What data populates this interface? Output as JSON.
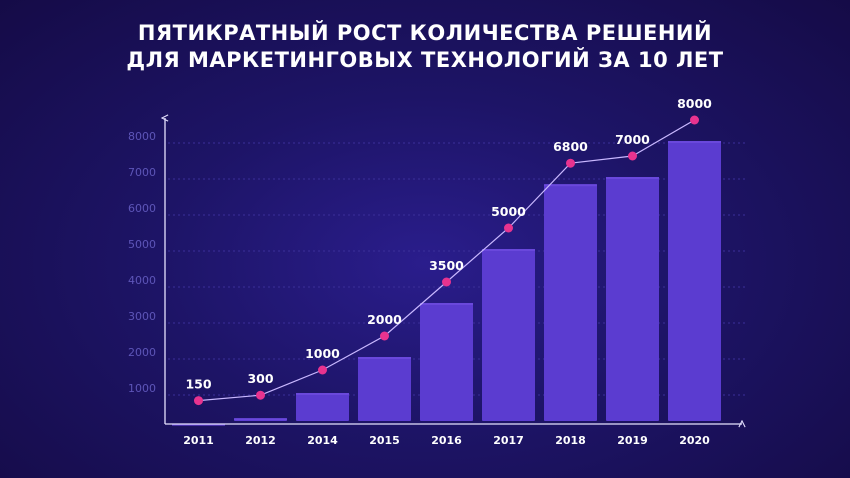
{
  "title": {
    "line1": "ПЯТИКРАТНЫЙ РОСТ КОЛИЧЕСТВА РЕШЕНИЙ",
    "line2": "ДЛЯ МАРКЕТИНГОВЫХ ТЕХНОЛОГИЙ ЗА 10 ЛЕТ"
  },
  "colors": {
    "bar": "#5b3cd0",
    "bar_light": "#6a48dc",
    "line": "#c9b8ff",
    "marker": "#e8338f",
    "axis": "#e6e2ff",
    "grid": "#3b2f9a"
  },
  "chart_data": {
    "type": "bar",
    "title": "ПЯТИКРАТНЫЙ РОСТ КОЛИЧЕСТВА РЕШЕНИЙ ДЛЯ МАРКЕТИНГОВЫХ ТЕХНОЛОГИЙ ЗА 10 ЛЕТ",
    "categories": [
      "2011",
      "2012",
      "2014",
      "2015",
      "2016",
      "2017",
      "2018",
      "2019",
      "2020"
    ],
    "values": [
      150,
      300,
      1000,
      2000,
      3500,
      5000,
      6800,
      7000,
      8000
    ],
    "data_labels": [
      "150",
      "300",
      "1000",
      "2000",
      "3500",
      "5000",
      "6800",
      "7000",
      "8000"
    ],
    "overlay_line": true,
    "yticks": [
      "1000",
      "2000",
      "3000",
      "4000",
      "5000",
      "6000",
      "7000",
      "8000"
    ],
    "ylim": [
      0,
      8500
    ],
    "xlabel": "",
    "ylabel": "",
    "grid": true
  }
}
